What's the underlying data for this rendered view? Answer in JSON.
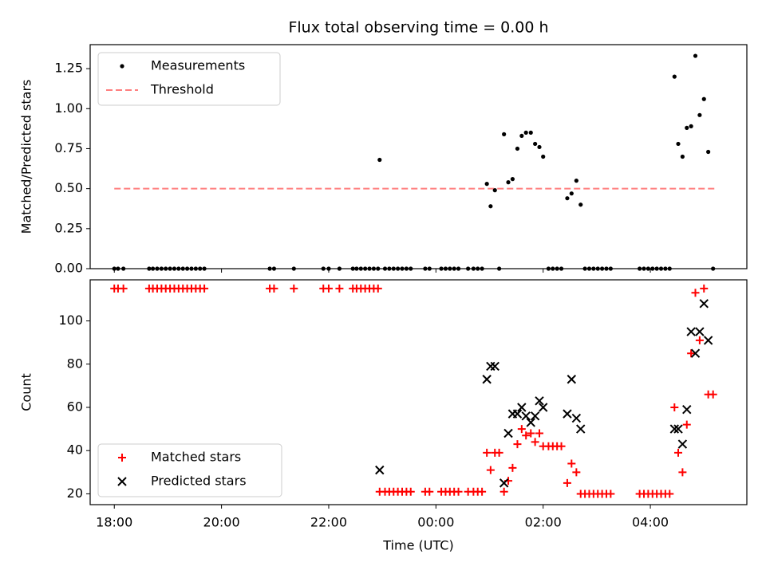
{
  "chart_data": [
    {
      "type": "scatter",
      "title": "Flux total observing time = 0.00 h",
      "ylabel": "Matched/Predicted stars",
      "xlabel": "",
      "xlim": [
        17.55,
        29.8
      ],
      "ylim": [
        0.0,
        1.4
      ],
      "yticks": [
        0.0,
        0.25,
        0.5,
        0.75,
        1.0,
        1.25
      ],
      "ytick_labels": [
        "0.00",
        "0.25",
        "0.50",
        "0.75",
        "1.00",
        "1.25"
      ],
      "xticks": [
        18,
        20,
        22,
        24,
        26,
        28
      ],
      "legend": {
        "placement": "top-left",
        "entries": [
          "Measurements",
          "Threshold"
        ]
      },
      "threshold": {
        "name": "Threshold",
        "value": 0.5,
        "x_range": [
          18.0,
          29.2
        ],
        "color": "#ff7f7f"
      },
      "series": [
        {
          "name": "Measurements",
          "color": "#000000",
          "points": [
            [
              18.0,
              0
            ],
            [
              18.07,
              0
            ],
            [
              18.17,
              0
            ],
            [
              18.65,
              0
            ],
            [
              18.72,
              0
            ],
            [
              18.8,
              0
            ],
            [
              18.88,
              0
            ],
            [
              18.96,
              0
            ],
            [
              19.04,
              0
            ],
            [
              19.12,
              0
            ],
            [
              19.2,
              0
            ],
            [
              19.28,
              0
            ],
            [
              19.36,
              0
            ],
            [
              19.44,
              0
            ],
            [
              19.52,
              0
            ],
            [
              19.6,
              0
            ],
            [
              19.68,
              0
            ],
            [
              20.9,
              0
            ],
            [
              20.98,
              0
            ],
            [
              21.35,
              0
            ],
            [
              21.9,
              0
            ],
            [
              22.0,
              0
            ],
            [
              22.2,
              0
            ],
            [
              22.45,
              0
            ],
            [
              22.52,
              0
            ],
            [
              22.6,
              0
            ],
            [
              22.68,
              0
            ],
            [
              22.76,
              0
            ],
            [
              22.84,
              0
            ],
            [
              22.92,
              0
            ],
            [
              22.95,
              0.68
            ],
            [
              23.05,
              0
            ],
            [
              23.13,
              0
            ],
            [
              23.21,
              0
            ],
            [
              23.29,
              0
            ],
            [
              23.37,
              0
            ],
            [
              23.45,
              0
            ],
            [
              23.53,
              0
            ],
            [
              23.8,
              0
            ],
            [
              23.88,
              0
            ],
            [
              24.1,
              0
            ],
            [
              24.18,
              0
            ],
            [
              24.26,
              0
            ],
            [
              24.34,
              0
            ],
            [
              24.42,
              0
            ],
            [
              24.6,
              0
            ],
            [
              24.7,
              0
            ],
            [
              24.78,
              0
            ],
            [
              24.86,
              0
            ],
            [
              24.95,
              0.53
            ],
            [
              25.02,
              0.39
            ],
            [
              25.1,
              0.49
            ],
            [
              25.18,
              0
            ],
            [
              25.27,
              0.84
            ],
            [
              25.35,
              0.54
            ],
            [
              25.43,
              0.56
            ],
            [
              25.52,
              0.75
            ],
            [
              25.6,
              0.83
            ],
            [
              25.68,
              0.85
            ],
            [
              25.77,
              0.85
            ],
            [
              25.85,
              0.78
            ],
            [
              25.93,
              0.76
            ],
            [
              26.0,
              0.7
            ],
            [
              26.1,
              0
            ],
            [
              26.18,
              0
            ],
            [
              26.26,
              0
            ],
            [
              26.34,
              0
            ],
            [
              26.45,
              0.44
            ],
            [
              26.53,
              0.47
            ],
            [
              26.62,
              0.55
            ],
            [
              26.7,
              0.4
            ],
            [
              26.78,
              0
            ],
            [
              26.86,
              0
            ],
            [
              26.94,
              0
            ],
            [
              27.02,
              0
            ],
            [
              27.1,
              0
            ],
            [
              27.18,
              0
            ],
            [
              27.26,
              0
            ],
            [
              27.8,
              0
            ],
            [
              27.88,
              0
            ],
            [
              27.96,
              0
            ],
            [
              28.04,
              0
            ],
            [
              28.12,
              0
            ],
            [
              28.2,
              0
            ],
            [
              28.28,
              0
            ],
            [
              28.36,
              0
            ],
            [
              28.45,
              1.2
            ],
            [
              28.52,
              0.78
            ],
            [
              28.6,
              0.7
            ],
            [
              28.68,
              0.88
            ],
            [
              28.76,
              0.89
            ],
            [
              28.84,
              1.33
            ],
            [
              28.92,
              0.96
            ],
            [
              29.0,
              1.06
            ],
            [
              29.08,
              0.73
            ],
            [
              29.17,
              0
            ]
          ]
        }
      ]
    },
    {
      "type": "scatter",
      "title": "",
      "ylabel": "Count",
      "xlabel": "Time (UTC)",
      "xlim": [
        17.55,
        29.8
      ],
      "ylim": [
        15,
        119
      ],
      "yticks": [
        20,
        40,
        60,
        80,
        100
      ],
      "ytick_labels": [
        "20",
        "40",
        "60",
        "80",
        "100"
      ],
      "xticks": [
        18,
        20,
        22,
        24,
        26,
        28
      ],
      "xtick_labels": [
        "18:00",
        "20:00",
        "22:00",
        "00:00",
        "02:00",
        "04:00"
      ],
      "legend": {
        "placement": "bottom-left",
        "entries": [
          "Matched stars",
          "Predicted stars"
        ]
      },
      "series": [
        {
          "name": "Matched stars",
          "color": "#ff0000",
          "marker": "plus",
          "points": [
            [
              18.0,
              115
            ],
            [
              18.07,
              115
            ],
            [
              18.17,
              115
            ],
            [
              18.65,
              115
            ],
            [
              18.72,
              115
            ],
            [
              18.8,
              115
            ],
            [
              18.88,
              115
            ],
            [
              18.96,
              115
            ],
            [
              19.04,
              115
            ],
            [
              19.12,
              115
            ],
            [
              19.2,
              115
            ],
            [
              19.28,
              115
            ],
            [
              19.36,
              115
            ],
            [
              19.44,
              115
            ],
            [
              19.52,
              115
            ],
            [
              19.6,
              115
            ],
            [
              19.68,
              115
            ],
            [
              20.9,
              115
            ],
            [
              20.98,
              115
            ],
            [
              21.35,
              115
            ],
            [
              21.9,
              115
            ],
            [
              22.0,
              115
            ],
            [
              22.2,
              115
            ],
            [
              22.45,
              115
            ],
            [
              22.52,
              115
            ],
            [
              22.6,
              115
            ],
            [
              22.68,
              115
            ],
            [
              22.76,
              115
            ],
            [
              22.84,
              115
            ],
            [
              22.92,
              115
            ],
            [
              22.95,
              21
            ],
            [
              23.05,
              21
            ],
            [
              23.13,
              21
            ],
            [
              23.21,
              21
            ],
            [
              23.29,
              21
            ],
            [
              23.37,
              21
            ],
            [
              23.45,
              21
            ],
            [
              23.53,
              21
            ],
            [
              23.8,
              21
            ],
            [
              23.88,
              21
            ],
            [
              24.1,
              21
            ],
            [
              24.18,
              21
            ],
            [
              24.26,
              21
            ],
            [
              24.34,
              21
            ],
            [
              24.42,
              21
            ],
            [
              24.6,
              21
            ],
            [
              24.7,
              21
            ],
            [
              24.78,
              21
            ],
            [
              24.86,
              21
            ],
            [
              24.95,
              39
            ],
            [
              25.02,
              31
            ],
            [
              25.1,
              39
            ],
            [
              25.18,
              39
            ],
            [
              25.27,
              21
            ],
            [
              25.35,
              26
            ],
            [
              25.43,
              32
            ],
            [
              25.52,
              43
            ],
            [
              25.6,
              50
            ],
            [
              25.68,
              47
            ],
            [
              25.77,
              48
            ],
            [
              25.85,
              44
            ],
            [
              25.93,
              48
            ],
            [
              26.0,
              42
            ],
            [
              26.1,
              42
            ],
            [
              26.18,
              42
            ],
            [
              26.26,
              42
            ],
            [
              26.34,
              42
            ],
            [
              26.45,
              25
            ],
            [
              26.53,
              34
            ],
            [
              26.62,
              30
            ],
            [
              26.7,
              20
            ],
            [
              26.78,
              20
            ],
            [
              26.86,
              20
            ],
            [
              26.94,
              20
            ],
            [
              27.02,
              20
            ],
            [
              27.1,
              20
            ],
            [
              27.18,
              20
            ],
            [
              27.26,
              20
            ],
            [
              27.8,
              20
            ],
            [
              27.88,
              20
            ],
            [
              27.96,
              20
            ],
            [
              28.04,
              20
            ],
            [
              28.12,
              20
            ],
            [
              28.2,
              20
            ],
            [
              28.28,
              20
            ],
            [
              28.36,
              20
            ],
            [
              28.45,
              60
            ],
            [
              28.52,
              39
            ],
            [
              28.6,
              30
            ],
            [
              28.68,
              52
            ],
            [
              28.76,
              85
            ],
            [
              28.84,
              113
            ],
            [
              28.92,
              91
            ],
            [
              29.0,
              115
            ],
            [
              29.08,
              66
            ],
            [
              29.17,
              66
            ]
          ]
        },
        {
          "name": "Predicted stars",
          "color": "#000000",
          "marker": "x",
          "points": [
            [
              22.95,
              31
            ],
            [
              24.95,
              73
            ],
            [
              25.02,
              79
            ],
            [
              25.1,
              79
            ],
            [
              25.27,
              25
            ],
            [
              25.35,
              48
            ],
            [
              25.43,
              57
            ],
            [
              25.52,
              57
            ],
            [
              25.6,
              60
            ],
            [
              25.68,
              56
            ],
            [
              25.77,
              53
            ],
            [
              25.85,
              56
            ],
            [
              25.93,
              63
            ],
            [
              26.0,
              60
            ],
            [
              26.45,
              57
            ],
            [
              26.53,
              73
            ],
            [
              26.62,
              55
            ],
            [
              26.7,
              50
            ],
            [
              28.45,
              50
            ],
            [
              28.52,
              50
            ],
            [
              28.6,
              43
            ],
            [
              28.68,
              59
            ],
            [
              28.76,
              95
            ],
            [
              28.84,
              85
            ],
            [
              28.92,
              95
            ],
            [
              29.0,
              108
            ],
            [
              29.08,
              91
            ]
          ]
        }
      ]
    }
  ]
}
